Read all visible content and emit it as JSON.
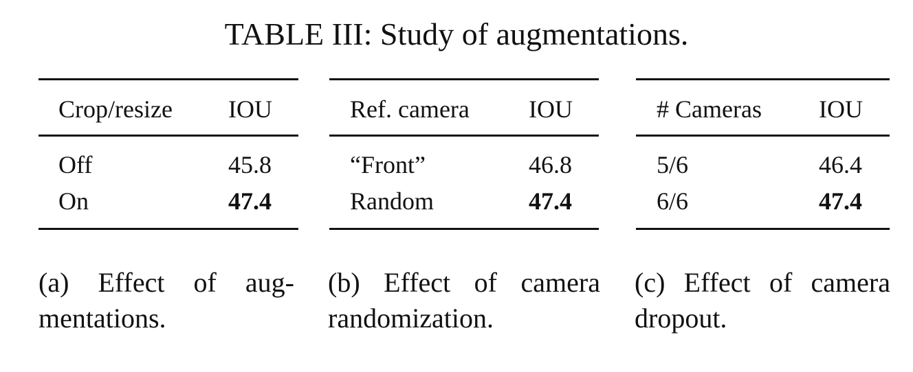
{
  "title": "TABLE III: Study of augmentations.",
  "subtables": [
    {
      "header": {
        "col1": "Crop/resize",
        "col2": "IOU"
      },
      "rows": [
        {
          "label": "Off",
          "value": "45.8"
        },
        {
          "label": "On",
          "value": "47.4"
        }
      ],
      "caption": {
        "line1": "(a)  Effect  of  aug-",
        "line2": "mentations."
      }
    },
    {
      "header": {
        "col1": "Ref. camera",
        "col2": "IOU"
      },
      "rows": [
        {
          "label": "“Front”",
          "value": "46.8"
        },
        {
          "label": "Random",
          "value": "47.4"
        }
      ],
      "caption": {
        "line1": "(b) Effect of camera",
        "line2": "randomization."
      }
    },
    {
      "header": {
        "col1": "# Cameras",
        "col2": "IOU"
      },
      "rows": [
        {
          "label": "5/6",
          "value": "46.4"
        },
        {
          "label": "6/6",
          "value": "47.4"
        }
      ],
      "caption": {
        "line1": "(c) Effect of camera",
        "line2": "dropout."
      }
    }
  ]
}
